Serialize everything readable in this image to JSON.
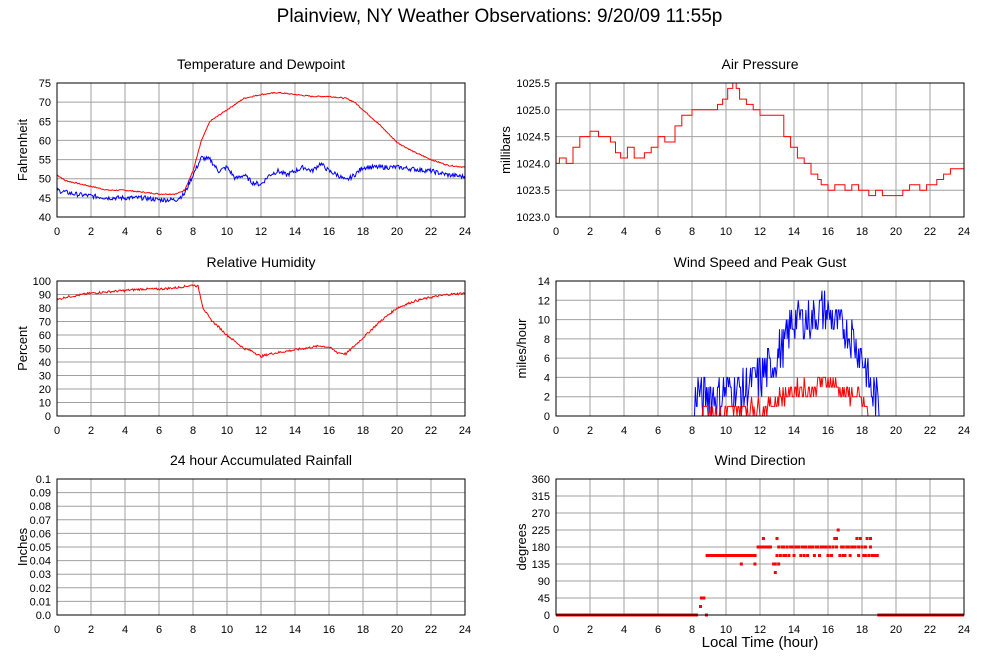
{
  "title": "Plainview, NY Weather Observations: 9/20/09 11:55p",
  "x_axis_label": "Local Time (hour)",
  "colors": {
    "red": "#ff0000",
    "blue": "#0000ff",
    "grid": "#a0a0a0",
    "frame": "#000000"
  },
  "chart_data": [
    {
      "id": "temp",
      "type": "line",
      "title": "Temperature and Dewpoint",
      "ylabel": "Fahrenheit",
      "xlim": [
        0,
        24
      ],
      "xticks": [
        0,
        2,
        4,
        6,
        8,
        10,
        12,
        14,
        16,
        18,
        20,
        22,
        24
      ],
      "ylim": [
        40,
        75
      ],
      "yticks": [
        "40",
        "45",
        "50",
        "55",
        "60",
        "65",
        "70",
        "75"
      ],
      "grid": true,
      "series": [
        {
          "color": "red",
          "noise": 0.15,
          "x": [
            0,
            0.5,
            1,
            2,
            3,
            4,
            5,
            6,
            7,
            7.5,
            8,
            8.5,
            9,
            10,
            11,
            12,
            13,
            14,
            15,
            16,
            17,
            17.5,
            18,
            19,
            20,
            21,
            22,
            23,
            24
          ],
          "values": [
            51,
            49.5,
            49,
            48,
            47,
            47,
            46.5,
            46,
            46,
            47,
            52,
            60,
            65,
            68,
            71,
            72,
            72.5,
            72,
            71.5,
            71.5,
            71,
            70,
            68,
            64,
            59.5,
            57,
            55,
            53.5,
            53
          ]
        },
        {
          "color": "blue",
          "noise": 0.6,
          "x": [
            0,
            1,
            2,
            3,
            4,
            5,
            6,
            7,
            7.5,
            8,
            8.5,
            9,
            9.5,
            10,
            10.5,
            11,
            11.5,
            12,
            12.5,
            13,
            13.5,
            14,
            14.5,
            15,
            15.5,
            16,
            16.5,
            17,
            17.5,
            18,
            19,
            20,
            21,
            22,
            23,
            24
          ],
          "values": [
            47,
            46,
            45.5,
            45,
            45,
            45,
            44.5,
            44.5,
            46,
            51,
            55.5,
            55,
            52,
            53,
            50,
            51,
            49,
            48.5,
            51,
            52,
            51,
            52,
            53,
            52,
            54,
            52,
            51,
            49.5,
            51,
            53,
            53,
            53,
            52.5,
            52,
            51,
            50.5
          ]
        }
      ]
    },
    {
      "id": "pressure",
      "type": "line",
      "title": "Air Pressure",
      "ylabel": "millibars",
      "xlim": [
        0,
        24
      ],
      "xticks": [
        0,
        2,
        4,
        6,
        8,
        10,
        12,
        14,
        16,
        18,
        20,
        22,
        24
      ],
      "ylim": [
        1023.0,
        1025.5
      ],
      "yticks": [
        "1023.0",
        "1023.5",
        "1024.0",
        "1024.5",
        "1025.0",
        "1025.5"
      ],
      "grid": true,
      "step": true,
      "series": [
        {
          "color": "red",
          "noise": 0,
          "x": [
            0,
            0.2,
            0.6,
            1.0,
            1.4,
            2.0,
            2.5,
            3.2,
            3.5,
            3.8,
            4.2,
            4.6,
            5.2,
            5.6,
            6.0,
            6.4,
            7.0,
            7.4,
            8.0,
            8.6,
            9.2,
            9.5,
            9.8,
            10.1,
            10.4,
            10.6,
            10.8,
            11.2,
            11.6,
            12.0,
            13.0,
            13.4,
            13.8,
            14.2,
            14.6,
            15.0,
            15.4,
            15.6,
            16.0,
            16.4,
            17.0,
            17.4,
            17.8,
            18.4,
            18.8,
            19.2,
            20.0,
            20.4,
            20.8,
            21.4,
            21.8,
            22.4,
            22.8,
            23.2,
            23.6,
            24
          ],
          "values": [
            1024.0,
            1024.1,
            1024.0,
            1024.3,
            1024.5,
            1024.6,
            1024.5,
            1024.4,
            1024.2,
            1024.1,
            1024.3,
            1024.1,
            1024.2,
            1024.3,
            1024.5,
            1024.4,
            1024.7,
            1024.9,
            1025.0,
            1025.0,
            1025.0,
            1025.1,
            1025.2,
            1025.4,
            1025.5,
            1025.4,
            1025.2,
            1025.1,
            1025.0,
            1024.9,
            1024.9,
            1024.5,
            1024.3,
            1024.1,
            1024.0,
            1023.8,
            1023.7,
            1023.6,
            1023.5,
            1023.6,
            1023.5,
            1023.6,
            1023.5,
            1023.4,
            1023.5,
            1023.4,
            1023.4,
            1023.5,
            1023.6,
            1023.5,
            1023.6,
            1023.7,
            1023.8,
            1023.9,
            1023.9,
            1023.9
          ]
        }
      ]
    },
    {
      "id": "humidity",
      "type": "line",
      "title": "Relative Humidity",
      "ylabel": "Percent",
      "xlim": [
        0,
        24
      ],
      "xticks": [
        0,
        2,
        4,
        6,
        8,
        10,
        12,
        14,
        16,
        18,
        20,
        22,
        24
      ],
      "ylim": [
        0,
        100
      ],
      "yticks": [
        "0",
        "10",
        "20",
        "30",
        "40",
        "50",
        "60",
        "70",
        "80",
        "90",
        "100"
      ],
      "grid": true,
      "series": [
        {
          "color": "red",
          "noise": 0.8,
          "x": [
            0,
            0.5,
            1,
            2,
            3,
            4,
            5,
            6,
            7,
            7.5,
            8,
            8.3,
            8.6,
            9,
            9.5,
            10,
            10.5,
            11,
            11.5,
            12,
            12.5,
            13,
            13.5,
            14,
            14.5,
            15,
            15.5,
            16,
            16.5,
            17,
            17.5,
            18,
            19,
            20,
            21,
            22,
            23,
            24
          ],
          "values": [
            86,
            88,
            89,
            91,
            92,
            93,
            94,
            94,
            95,
            96,
            97,
            96,
            80,
            72,
            66,
            60,
            55,
            50,
            48,
            44,
            46,
            47,
            48,
            49,
            50,
            51,
            52,
            51,
            47,
            46,
            52,
            58,
            70,
            80,
            85,
            88,
            90,
            91
          ]
        }
      ]
    },
    {
      "id": "wind",
      "type": "line",
      "title": "Wind Speed and Peak Gust",
      "ylabel": "miles/hour",
      "xlim": [
        0,
        24
      ],
      "xticks": [
        0,
        2,
        4,
        6,
        8,
        10,
        12,
        14,
        16,
        18,
        20,
        22,
        24
      ],
      "ylim": [
        0,
        14
      ],
      "yticks": [
        "0",
        "2",
        "4",
        "6",
        "8",
        "10",
        "12",
        "14"
      ],
      "grid": true,
      "series": [
        {
          "color": "blue",
          "noise": 2.2,
          "x": [
            0,
            8.1,
            8.3,
            8.6,
            9,
            9.5,
            10,
            10.5,
            11,
            11.5,
            12,
            12.5,
            13,
            13.5,
            14,
            14.5,
            15,
            15.5,
            16,
            16.5,
            17,
            17.5,
            18,
            18.5,
            19,
            19.2,
            24
          ],
          "values": [
            0,
            0,
            3,
            1.5,
            2.5,
            2,
            2.5,
            3,
            2.5,
            3.5,
            4,
            5,
            6,
            8,
            10,
            10,
            10,
            11,
            10.5,
            9.5,
            9,
            8,
            6,
            3,
            1,
            0,
            0
          ]
        },
        {
          "color": "red",
          "noise": 0.9,
          "x": [
            0,
            8.5,
            8.8,
            9.2,
            9.6,
            10,
            10.5,
            11,
            11.5,
            12,
            12.5,
            13,
            13.5,
            14,
            14.5,
            15,
            15.5,
            16,
            16.5,
            17,
            17.5,
            18,
            18.4,
            24
          ],
          "values": [
            0,
            0,
            1.5,
            0.3,
            0,
            0.6,
            0.8,
            0.6,
            1,
            0.8,
            1.2,
            1.6,
            2.2,
            2.6,
            3,
            2.6,
            3.4,
            3.6,
            3,
            2.4,
            2.2,
            1.6,
            0,
            0
          ]
        }
      ]
    },
    {
      "id": "rain",
      "type": "line",
      "title": "24 hour Accumulated Rainfall",
      "ylabel": "Inches",
      "xlim": [
        0,
        24
      ],
      "xticks": [
        0,
        2,
        4,
        6,
        8,
        10,
        12,
        14,
        16,
        18,
        20,
        22,
        24
      ],
      "ylim": [
        0,
        0.1
      ],
      "yticks": [
        "0.0",
        "0.01",
        "0.02",
        "0.03",
        "0.04",
        "0.05",
        "0.06",
        "0.07",
        "0.08",
        "0.09",
        "0.1"
      ],
      "grid": true,
      "series": [
        {
          "color": "red",
          "noise": 0,
          "x": [
            0,
            24
          ],
          "values": [
            0,
            0
          ]
        }
      ]
    },
    {
      "id": "direction",
      "type": "scatter",
      "title": "Wind Direction",
      "ylabel": "degrees",
      "xlim": [
        0,
        24
      ],
      "xticks": [
        0,
        2,
        4,
        6,
        8,
        10,
        12,
        14,
        16,
        18,
        20,
        22,
        24
      ],
      "ylim": [
        0,
        360
      ],
      "yticks": [
        "0",
        "45",
        "90",
        "135",
        "180",
        "225",
        "270",
        "315",
        "360"
      ],
      "grid": true,
      "segments": [
        {
          "x0": 0,
          "x1": 8.35,
          "y": 0
        },
        {
          "x0": 8.8,
          "x1": 11.8,
          "y": 157.5
        },
        {
          "x0": 11.8,
          "x1": 12.7,
          "y": 180
        },
        {
          "x0": 18.9,
          "x1": 24,
          "y": 0
        }
      ],
      "points": {
        "x": [
          8.5,
          8.55,
          8.65,
          8.7,
          8.85,
          10.9,
          11.7,
          12.2,
          12.8,
          12.9,
          13.0,
          13.1,
          13.2,
          13.3,
          13.4,
          13.5,
          13.6,
          13.7,
          13.8,
          13.9,
          14.0,
          14.1,
          14.2,
          14.3,
          14.4,
          14.5,
          14.6,
          14.7,
          14.8,
          14.9,
          15.0,
          15.1,
          15.2,
          15.3,
          15.4,
          15.5,
          15.6,
          15.7,
          15.8,
          15.9,
          16.0,
          16.1,
          16.2,
          16.3,
          16.4,
          16.5,
          16.6,
          16.7,
          16.8,
          16.9,
          17.0,
          17.1,
          17.2,
          17.3,
          17.4,
          17.5,
          17.6,
          17.7,
          17.8,
          17.9,
          18.0,
          18.1,
          18.2,
          18.3,
          18.4,
          18.5,
          18.6,
          18.7,
          18.8,
          18.9,
          13.0,
          13.1,
          12.9,
          16.5,
          16.2,
          17.8,
          18.2,
          18.5,
          12.6,
          13.4,
          14.6,
          15.8,
          16.9,
          17.4,
          18.6
        ],
        "values": [
          22.5,
          45,
          45,
          45,
          0,
          135,
          135,
          202.5,
          135,
          112.5,
          202.5,
          180,
          157.5,
          180,
          180,
          157.5,
          180,
          157.5,
          180,
          180,
          157.5,
          180,
          180,
          180,
          157.5,
          180,
          180,
          180,
          157.5,
          180,
          180,
          180,
          157.5,
          180,
          180,
          157.5,
          180,
          180,
          180,
          180,
          157.5,
          180,
          157.5,
          180,
          202.5,
          180,
          225,
          157.5,
          180,
          180,
          157.5,
          180,
          180,
          157.5,
          180,
          180,
          180,
          202.5,
          157.5,
          202.5,
          180,
          157.5,
          180,
          202.5,
          157.5,
          180,
          157.5,
          157.5,
          157.5,
          157.5,
          157.5,
          135,
          135,
          202.5,
          157.5,
          180,
          157.5,
          202.5,
          180,
          157.5,
          157.5,
          180,
          157.5,
          180,
          157.5
        ]
      }
    }
  ]
}
